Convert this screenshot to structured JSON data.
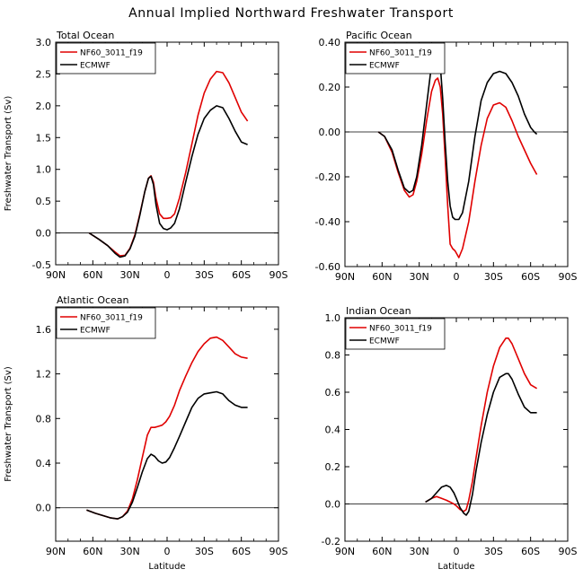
{
  "figure_title": "Annual Implied Northward Freshwater Transport",
  "colors": {
    "model": "#e00000",
    "obs": "#000000"
  },
  "chart_data": [
    {
      "type": "line",
      "title": "Total Ocean",
      "xlabel": "",
      "ylabel": "Freshwater Transport (Sv)",
      "xlim": [
        90,
        -90
      ],
      "ylim": [
        -0.5,
        3.0
      ],
      "xticks": [
        90,
        60,
        30,
        0,
        -30,
        -60,
        -90
      ],
      "xtick_labels": [
        "90N",
        "60N",
        "30N",
        "0",
        "30S",
        "60S",
        "90S"
      ],
      "yticks": [
        -0.5,
        0.0,
        0.5,
        1.0,
        1.5,
        2.0,
        2.5,
        3.0
      ],
      "ytick_labels": [
        "-0.5",
        "0.0",
        "0.5",
        "1.0",
        "1.5",
        "2.0",
        "2.5",
        "3.0"
      ],
      "legend": "top-left",
      "series": [
        {
          "name": "NF60_3011_f19",
          "color": "#e00000",
          "x": [
            63,
            55,
            48,
            42,
            38,
            34,
            30,
            26,
            22,
            18,
            15,
            13,
            11,
            9,
            6,
            3,
            0,
            -3,
            -6,
            -10,
            -15,
            -20,
            -25,
            -30,
            -35,
            -40,
            -45,
            -50,
            -55,
            -60,
            -65
          ],
          "y": [
            0.0,
            -0.1,
            -0.2,
            -0.3,
            -0.36,
            -0.35,
            -0.24,
            -0.03,
            0.3,
            0.65,
            0.86,
            0.9,
            0.8,
            0.55,
            0.3,
            0.23,
            0.23,
            0.24,
            0.3,
            0.55,
            0.95,
            1.4,
            1.85,
            2.2,
            2.42,
            2.54,
            2.52,
            2.36,
            2.13,
            1.9,
            1.76
          ]
        },
        {
          "name": "ECMWF",
          "color": "#000000",
          "x": [
            63,
            55,
            48,
            42,
            38,
            34,
            30,
            26,
            22,
            18,
            15,
            13,
            11,
            9,
            6,
            3,
            0,
            -3,
            -6,
            -10,
            -15,
            -20,
            -25,
            -30,
            -35,
            -40,
            -45,
            -50,
            -55,
            -60,
            -65
          ],
          "y": [
            0.0,
            -0.1,
            -0.2,
            -0.32,
            -0.38,
            -0.36,
            -0.25,
            -0.05,
            0.28,
            0.65,
            0.86,
            0.89,
            0.76,
            0.45,
            0.15,
            0.07,
            0.05,
            0.08,
            0.15,
            0.38,
            0.8,
            1.2,
            1.55,
            1.8,
            1.93,
            2.0,
            1.97,
            1.8,
            1.6,
            1.43,
            1.39
          ]
        }
      ]
    },
    {
      "type": "line",
      "title": "Pacific Ocean",
      "xlabel": "",
      "ylabel": "",
      "xlim": [
        90,
        -90
      ],
      "ylim": [
        -0.6,
        0.4
      ],
      "xticks": [
        90,
        60,
        30,
        0,
        -30,
        -60,
        -90
      ],
      "xtick_labels": [
        "90N",
        "60N",
        "30N",
        "0",
        "30S",
        "60S",
        "90S"
      ],
      "yticks": [
        -0.6,
        -0.4,
        -0.2,
        0.0,
        0.2,
        0.4
      ],
      "ytick_labels": [
        "-0.60",
        "-0.40",
        "-0.20",
        "0.00",
        "0.20",
        "0.40"
      ],
      "legend": "top-left",
      "series": [
        {
          "name": "NF60_3011_f19",
          "color": "#e00000",
          "x": [
            63,
            58,
            52,
            47,
            42,
            38,
            35,
            32,
            28,
            24,
            20,
            17,
            15,
            13,
            11,
            9,
            7,
            5,
            3,
            1,
            -2,
            -5,
            -10,
            -15,
            -20,
            -25,
            -30,
            -35,
            -40,
            -45,
            -50,
            -55,
            -60,
            -65
          ],
          "y": [
            0.0,
            -0.02,
            -0.09,
            -0.18,
            -0.26,
            -0.29,
            -0.28,
            -0.22,
            -0.1,
            0.05,
            0.18,
            0.23,
            0.24,
            0.2,
            0.08,
            -0.12,
            -0.33,
            -0.5,
            -0.52,
            -0.53,
            -0.56,
            -0.52,
            -0.4,
            -0.22,
            -0.06,
            0.06,
            0.12,
            0.13,
            0.11,
            0.05,
            -0.02,
            -0.08,
            -0.14,
            -0.19
          ]
        },
        {
          "name": "ECMWF",
          "color": "#000000",
          "x": [
            63,
            58,
            52,
            47,
            42,
            38,
            35,
            32,
            28,
            24,
            20,
            17,
            15,
            13,
            11,
            9,
            7,
            5,
            3,
            1,
            -2,
            -5,
            -10,
            -15,
            -20,
            -25,
            -30,
            -35,
            -40,
            -45,
            -50,
            -55,
            -60,
            -63,
            -65
          ],
          "y": [
            0.0,
            -0.02,
            -0.08,
            -0.17,
            -0.25,
            -0.27,
            -0.26,
            -0.2,
            -0.06,
            0.12,
            0.3,
            0.37,
            0.36,
            0.3,
            0.15,
            -0.05,
            -0.22,
            -0.33,
            -0.38,
            -0.39,
            -0.39,
            -0.36,
            -0.22,
            -0.02,
            0.14,
            0.22,
            0.26,
            0.27,
            0.26,
            0.22,
            0.16,
            0.08,
            0.02,
            0.0,
            -0.01
          ]
        }
      ]
    },
    {
      "type": "line",
      "title": "Atlantic Ocean",
      "xlabel": "Latitude",
      "ylabel": "Freshwater Transport (Sv)",
      "xlim": [
        90,
        -90
      ],
      "ylim": [
        -0.3,
        1.8
      ],
      "xticks": [
        90,
        60,
        30,
        0,
        -30,
        -60,
        -90
      ],
      "xtick_labels": [
        "90N",
        "60N",
        "30N",
        "0",
        "30S",
        "60S",
        "90S"
      ],
      "yticks": [
        0.0,
        0.4,
        0.8,
        1.2,
        1.6
      ],
      "ytick_labels": [
        "0.0",
        "0.4",
        "0.8",
        "1.2",
        "1.6"
      ],
      "legend": "top-left",
      "series": [
        {
          "name": "NF60_3011_f19",
          "color": "#e00000",
          "x": [
            65,
            58,
            52,
            46,
            40,
            36,
            32,
            28,
            24,
            20,
            16,
            13,
            10,
            7,
            4,
            1,
            -2,
            -6,
            -10,
            -15,
            -20,
            -25,
            -30,
            -35,
            -40,
            -45,
            -50,
            -55,
            -60,
            -65
          ],
          "y": [
            -0.02,
            -0.05,
            -0.07,
            -0.09,
            -0.1,
            -0.08,
            -0.03,
            0.08,
            0.25,
            0.45,
            0.65,
            0.72,
            0.72,
            0.73,
            0.74,
            0.77,
            0.82,
            0.92,
            1.05,
            1.18,
            1.3,
            1.4,
            1.47,
            1.52,
            1.53,
            1.5,
            1.44,
            1.38,
            1.35,
            1.34
          ]
        },
        {
          "name": "ECMWF",
          "color": "#000000",
          "x": [
            65,
            58,
            52,
            46,
            40,
            36,
            32,
            28,
            24,
            20,
            16,
            13,
            10,
            7,
            4,
            1,
            -2,
            -6,
            -10,
            -15,
            -20,
            -25,
            -30,
            -35,
            -40,
            -45,
            -50,
            -55,
            -60,
            -65
          ],
          "y": [
            -0.02,
            -0.05,
            -0.07,
            -0.09,
            -0.1,
            -0.08,
            -0.04,
            0.05,
            0.18,
            0.32,
            0.44,
            0.48,
            0.46,
            0.42,
            0.4,
            0.41,
            0.45,
            0.54,
            0.64,
            0.77,
            0.9,
            0.98,
            1.02,
            1.03,
            1.04,
            1.02,
            0.96,
            0.92,
            0.9,
            0.9
          ]
        }
      ]
    },
    {
      "type": "line",
      "title": "Indian Ocean",
      "xlabel": "Latitude",
      "ylabel": "",
      "xlim": [
        90,
        -90
      ],
      "ylim": [
        -0.2,
        1.0
      ],
      "xticks": [
        90,
        60,
        30,
        0,
        -30,
        -60,
        -90
      ],
      "xtick_labels": [
        "90N",
        "60N",
        "30N",
        "0",
        "30S",
        "60S",
        "90S"
      ],
      "yticks": [
        -0.2,
        0.0,
        0.2,
        0.4,
        0.6,
        0.8,
        1.0
      ],
      "ytick_labels": [
        "-0.2",
        "0.0",
        "0.2",
        "0.4",
        "0.6",
        "0.8",
        "1.0"
      ],
      "legend": "top-left",
      "series": [
        {
          "name": "NF60_3011_f19",
          "color": "#e00000",
          "x": [
            25,
            20,
            16,
            12,
            8,
            5,
            2,
            0,
            -3,
            -6,
            -8,
            -10,
            -13,
            -16,
            -20,
            -25,
            -30,
            -35,
            -40,
            -42,
            -45,
            -50,
            -55,
            -60,
            -65
          ],
          "y": [
            0.01,
            0.03,
            0.04,
            0.03,
            0.02,
            0.01,
            0.0,
            -0.01,
            -0.03,
            -0.04,
            -0.03,
            0.02,
            0.12,
            0.25,
            0.42,
            0.6,
            0.74,
            0.84,
            0.89,
            0.89,
            0.86,
            0.78,
            0.7,
            0.64,
            0.62
          ]
        },
        {
          "name": "ECMWF",
          "color": "#000000",
          "x": [
            25,
            20,
            16,
            12,
            8,
            5,
            2,
            0,
            -3,
            -6,
            -8,
            -10,
            -13,
            -16,
            -20,
            -25,
            -30,
            -35,
            -40,
            -42,
            -45,
            -50,
            -55,
            -60,
            -65
          ],
          "y": [
            0.01,
            0.03,
            0.06,
            0.09,
            0.1,
            0.09,
            0.06,
            0.03,
            -0.02,
            -0.05,
            -0.06,
            -0.04,
            0.05,
            0.18,
            0.33,
            0.48,
            0.6,
            0.68,
            0.7,
            0.7,
            0.67,
            0.59,
            0.52,
            0.49,
            0.49
          ]
        }
      ]
    }
  ]
}
